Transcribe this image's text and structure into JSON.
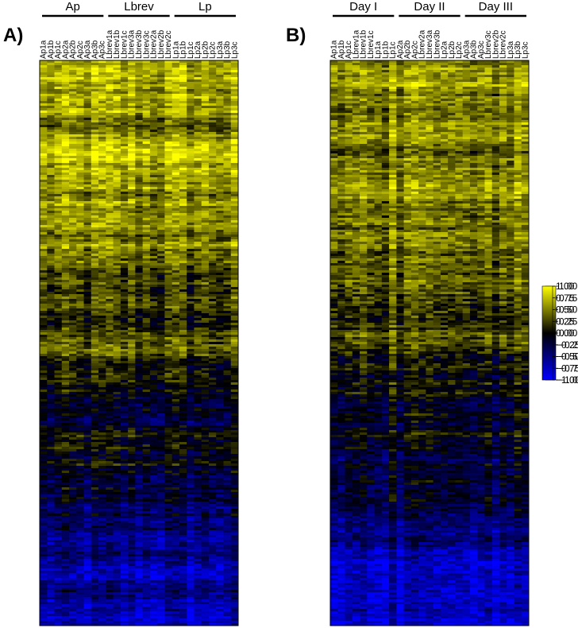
{
  "chart_data": [
    {
      "type": "heatmap",
      "panel_label": "A)",
      "groups": [
        {
          "label": "Ap",
          "columns": 9
        },
        {
          "label": "Lbrev",
          "columns": 9
        },
        {
          "label": "Lp",
          "columns": 9
        }
      ],
      "columns": [
        "Ap1a",
        "Ap1b",
        "Ap1c",
        "Ap2a",
        "Ap2b",
        "Ap2c",
        "Ap3a",
        "Ap3b",
        "Ap3c",
        "Lbrev1a",
        "Lbrev1b",
        "Lbrev1c",
        "Lbrev3a",
        "Lbrev3b",
        "Lbrev3c",
        "Lbrev2a",
        "Lbrev2b",
        "Lbrev2c",
        "Lp1a",
        "Lp1b",
        "Lp1c",
        "Lp2a",
        "Lp2b",
        "Lp2c",
        "Lp3a",
        "Lp3b",
        "Lp3c"
      ],
      "value_range": [
        -1,
        1
      ],
      "colorbar": {
        "ticks": [
          "1.00",
          "0.75",
          "0.50",
          "0.25",
          "0.00",
          "−0.25",
          "−0.50",
          "−0.75",
          "−1.00"
        ],
        "tick_values": [
          1,
          0.75,
          0.5,
          0.25,
          0,
          -0.25,
          -0.5,
          -0.75,
          -1
        ],
        "colors": [
          "#0000ff",
          "#000000",
          "#ffff00"
        ]
      }
    },
    {
      "type": "heatmap",
      "panel_label": "B)",
      "groups": [
        {
          "label": "Day I",
          "columns": 9
        },
        {
          "label": "Day II",
          "columns": 9
        },
        {
          "label": "Day III",
          "columns": 9
        }
      ],
      "columns": [
        "Ap1a",
        "Ap1b",
        "Ap1c",
        "Lbrev1a",
        "Lbrev1b",
        "Lbrev1c",
        "Lp1a",
        "Lp1b",
        "Lp1c",
        "Ap2a",
        "Ap2b",
        "Ap2c",
        "Lbrev2a",
        "Lbrev3a",
        "Lbrev3b",
        "Lp2a",
        "Lp2b",
        "Lp2c",
        "Ap3a",
        "Ap3b",
        "Ap3c",
        "Lbrev3c",
        "Lbrev2b",
        "Lbrev2c",
        "Lp3a",
        "Lp3b",
        "Lp3c"
      ],
      "value_range": [
        -1,
        1
      ],
      "colorbar": {
        "ticks": [
          "1.00",
          "0.75",
          "0.50",
          "0.25",
          "0.00",
          "−0.25",
          "−0.50",
          "−0.75",
          "−1.00"
        ],
        "tick_values": [
          1,
          0.75,
          0.5,
          0.25,
          0,
          -0.25,
          -0.5,
          -0.75,
          -1
        ],
        "colors": [
          "#0000ff",
          "#000000",
          "#ffff00"
        ]
      }
    }
  ]
}
